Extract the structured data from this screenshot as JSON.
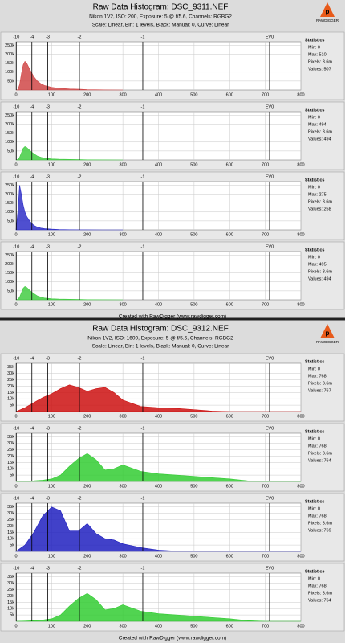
{
  "panels": [
    {
      "title": "Raw Data Histogram: DSC_9311.NEF",
      "subtitle": "Nikon 1V2, ISO: 200, Exposure: 5 @ f/5.6, Channels: RGBG2",
      "settings": "Scale: Linear, Bin: 1 levels, Black: Manual: 0, Curve: Linear",
      "logo": "RAWDIGGER",
      "footer": "Created with RawDigger (www.rawdigger.com)"
    },
    {
      "title": "Raw Data Histogram: DSC_9312.NEF",
      "subtitle": "Nikon 1V2, ISO: 1600, Exposure: 5 @ f/5.6, Channels: RGBG2",
      "settings": "Scale: Linear, Bin: 1 levels, Black: Manual: 0, Curve: Linear",
      "logo": "RAWDIGGER",
      "footer": "Created with RawDigger (www.rawdigger.com)"
    }
  ],
  "chart_data": [
    {
      "type": "area",
      "color": "#d04848",
      "x": [
        0,
        5,
        10,
        15,
        20,
        25,
        30,
        40,
        50,
        60,
        70,
        80,
        100,
        120,
        150,
        180,
        200,
        250,
        300
      ],
      "values": [
        0,
        2000,
        30000,
        90000,
        140000,
        160000,
        150000,
        110000,
        75000,
        50000,
        35000,
        25000,
        15000,
        10000,
        6000,
        4000,
        2000,
        500,
        0
      ],
      "xlim": [
        0,
        800
      ],
      "xticks": [
        0,
        100,
        200,
        300,
        400,
        500,
        600,
        700,
        800
      ],
      "ylim": [
        0,
        270000
      ],
      "yticks": [
        {
          "value": 50000,
          "label": "50k"
        },
        {
          "value": 100000,
          "label": "100k"
        },
        {
          "value": 150000,
          "label": "150k"
        },
        {
          "value": 200000,
          "label": "200k"
        },
        {
          "value": 250000,
          "label": "250k"
        }
      ],
      "ev_ticks": [
        {
          "value": 0.7,
          "label": "-10"
        },
        {
          "value": 44.5,
          "label": "-4"
        },
        {
          "value": 89,
          "label": "-3"
        },
        {
          "value": 178,
          "label": "-2"
        },
        {
          "value": 356,
          "label": "-1"
        },
        {
          "value": 712,
          "label": "EV0"
        }
      ],
      "grid": true,
      "stats": [
        "Statistics",
        "Min: 0",
        "Max: 510",
        "Pixels: 3.6m",
        "Values: 507"
      ]
    },
    {
      "type": "area",
      "color": "#44cc44",
      "x": [
        0,
        5,
        10,
        15,
        20,
        25,
        30,
        40,
        50,
        60,
        70,
        80,
        100,
        120,
        150,
        180,
        200,
        250,
        300
      ],
      "values": [
        0,
        3000,
        15000,
        40000,
        65000,
        75000,
        70000,
        50000,
        35000,
        22000,
        15000,
        10000,
        6000,
        4000,
        3000,
        2000,
        1000,
        300,
        0
      ],
      "xlim": [
        0,
        800
      ],
      "xticks": [
        0,
        100,
        200,
        300,
        400,
        500,
        600,
        700,
        800
      ],
      "ylim": [
        0,
        270000
      ],
      "yticks": [
        {
          "value": 50000,
          "label": "50k"
        },
        {
          "value": 100000,
          "label": "100k"
        },
        {
          "value": 150000,
          "label": "150k"
        },
        {
          "value": 200000,
          "label": "200k"
        },
        {
          "value": 250000,
          "label": "250k"
        }
      ],
      "ev_ticks": [
        {
          "value": 0.7,
          "label": "-10"
        },
        {
          "value": 44.5,
          "label": "-4"
        },
        {
          "value": 89,
          "label": "-3"
        },
        {
          "value": 178,
          "label": "-2"
        },
        {
          "value": 356,
          "label": "-1"
        },
        {
          "value": 712,
          "label": "EV0"
        }
      ],
      "grid": true,
      "stats": [
        "Statistics",
        "Min: 0",
        "Max: 494",
        "Pixels: 3.6m",
        "Values: 494"
      ]
    },
    {
      "type": "area",
      "color": "#3030c8",
      "x": [
        0,
        5,
        10,
        15,
        20,
        25,
        30,
        40,
        50,
        60,
        70,
        80,
        100,
        120,
        150,
        180,
        200,
        250,
        300
      ],
      "values": [
        0,
        100000,
        250000,
        200000,
        140000,
        100000,
        75000,
        45000,
        25000,
        15000,
        10000,
        7000,
        4000,
        2000,
        1000,
        500,
        200,
        0,
        0
      ],
      "xlim": [
        0,
        800
      ],
      "xticks": [
        0,
        100,
        200,
        300,
        400,
        500,
        600,
        700,
        800
      ],
      "ylim": [
        0,
        270000
      ],
      "yticks": [
        {
          "value": 50000,
          "label": "50k"
        },
        {
          "value": 100000,
          "label": "100k"
        },
        {
          "value": 150000,
          "label": "150k"
        },
        {
          "value": 200000,
          "label": "200k"
        },
        {
          "value": 250000,
          "label": "250k"
        }
      ],
      "ev_ticks": [
        {
          "value": 0.7,
          "label": "-10"
        },
        {
          "value": 44.5,
          "label": "-4"
        },
        {
          "value": 89,
          "label": "-3"
        },
        {
          "value": 178,
          "label": "-2"
        },
        {
          "value": 356,
          "label": "-1"
        },
        {
          "value": 712,
          "label": "EV0"
        }
      ],
      "grid": true,
      "stats": [
        "Statistics",
        "Min: 0",
        "Max: 275",
        "Pixels: 3.6m",
        "Values: 268"
      ]
    },
    {
      "type": "area",
      "color": "#44cc44",
      "x": [
        0,
        5,
        10,
        15,
        20,
        25,
        30,
        40,
        50,
        60,
        70,
        80,
        100,
        120,
        150,
        180,
        200,
        250,
        300
      ],
      "values": [
        0,
        3000,
        15000,
        40000,
        65000,
        75000,
        70000,
        50000,
        35000,
        22000,
        15000,
        10000,
        6000,
        4000,
        3000,
        2000,
        1000,
        300,
        0
      ],
      "xlim": [
        0,
        800
      ],
      "xticks": [
        0,
        100,
        200,
        300,
        400,
        500,
        600,
        700,
        800
      ],
      "ylim": [
        0,
        270000
      ],
      "yticks": [
        {
          "value": 50000,
          "label": "50k"
        },
        {
          "value": 100000,
          "label": "100k"
        },
        {
          "value": 150000,
          "label": "150k"
        },
        {
          "value": 200000,
          "label": "200k"
        },
        {
          "value": 250000,
          "label": "250k"
        }
      ],
      "ev_ticks": [
        {
          "value": 0.7,
          "label": "-10"
        },
        {
          "value": 44.5,
          "label": "-4"
        },
        {
          "value": 89,
          "label": "-3"
        },
        {
          "value": 178,
          "label": "-2"
        },
        {
          "value": 356,
          "label": "-1"
        },
        {
          "value": 712,
          "label": "EV0"
        }
      ],
      "grid": true,
      "stats": [
        "Statistics",
        "Min: 0",
        "Max: 495",
        "Pixels: 3.6m",
        "Values: 494"
      ]
    },
    {
      "type": "area",
      "color": "#cc1010",
      "x": [
        0,
        25,
        50,
        75,
        100,
        125,
        150,
        175,
        200,
        225,
        250,
        275,
        300,
        350,
        400,
        450,
        500,
        550,
        600,
        650,
        700,
        750,
        800
      ],
      "values": [
        0,
        3000,
        7000,
        11000,
        14000,
        18000,
        21000,
        19000,
        16000,
        18000,
        19000,
        15000,
        9000,
        4000,
        3000,
        2500,
        1500,
        400,
        0,
        0,
        0,
        0,
        0
      ],
      "xlim": [
        0,
        800
      ],
      "xticks": [
        0,
        100,
        200,
        300,
        400,
        500,
        600,
        700,
        800
      ],
      "ylim": [
        0,
        38000
      ],
      "yticks": [
        {
          "value": 5000,
          "label": "5k"
        },
        {
          "value": 10000,
          "label": "10k"
        },
        {
          "value": 15000,
          "label": "15k"
        },
        {
          "value": 20000,
          "label": "20k"
        },
        {
          "value": 25000,
          "label": "25k"
        },
        {
          "value": 30000,
          "label": "30k"
        },
        {
          "value": 35000,
          "label": "35k"
        }
      ],
      "ev_ticks": [
        {
          "value": 0.7,
          "label": "-10"
        },
        {
          "value": 44.5,
          "label": "-4"
        },
        {
          "value": 89,
          "label": "-3"
        },
        {
          "value": 178,
          "label": "-2"
        },
        {
          "value": 356,
          "label": "-1"
        },
        {
          "value": 712,
          "label": "EV0"
        }
      ],
      "grid": true,
      "stats": [
        "Statistics",
        "Min: 0",
        "Max: 768",
        "Pixels: 3.6m",
        "Values: 767"
      ]
    },
    {
      "type": "area",
      "color": "#33cc33",
      "x": [
        0,
        25,
        50,
        75,
        100,
        125,
        150,
        175,
        200,
        225,
        250,
        275,
        300,
        350,
        400,
        450,
        500,
        550,
        600,
        650,
        700,
        750,
        800
      ],
      "values": [
        0,
        200,
        500,
        1000,
        2000,
        5000,
        12000,
        18000,
        22000,
        17000,
        9000,
        10000,
        13000,
        8000,
        6000,
        5000,
        4000,
        3000,
        2000,
        500,
        0,
        0,
        0
      ],
      "xlim": [
        0,
        800
      ],
      "xticks": [
        0,
        100,
        200,
        300,
        400,
        500,
        600,
        700,
        800
      ],
      "ylim": [
        0,
        38000
      ],
      "yticks": [
        {
          "value": 5000,
          "label": "5k"
        },
        {
          "value": 10000,
          "label": "10k"
        },
        {
          "value": 15000,
          "label": "15k"
        },
        {
          "value": 20000,
          "label": "20k"
        },
        {
          "value": 25000,
          "label": "25k"
        },
        {
          "value": 30000,
          "label": "30k"
        },
        {
          "value": 35000,
          "label": "35k"
        }
      ],
      "ev_ticks": [
        {
          "value": 0.7,
          "label": "-10"
        },
        {
          "value": 44.5,
          "label": "-4"
        },
        {
          "value": 89,
          "label": "-3"
        },
        {
          "value": 178,
          "label": "-2"
        },
        {
          "value": 356,
          "label": "-1"
        },
        {
          "value": 712,
          "label": "EV0"
        }
      ],
      "grid": true,
      "stats": [
        "Statistics",
        "Min: 0",
        "Max: 768",
        "Pixels: 3.6m",
        "Values: 764"
      ]
    },
    {
      "type": "area",
      "color": "#2020c0",
      "x": [
        0,
        25,
        50,
        75,
        100,
        125,
        150,
        175,
        200,
        225,
        250,
        275,
        300,
        350,
        400,
        450,
        500,
        550,
        600,
        650,
        700,
        750,
        800
      ],
      "values": [
        0,
        5000,
        15000,
        28000,
        35000,
        32000,
        16000,
        16000,
        22000,
        14000,
        10000,
        9000,
        6000,
        3000,
        1000,
        200,
        0,
        0,
        0,
        0,
        0,
        0,
        0
      ],
      "xlim": [
        0,
        800
      ],
      "xticks": [
        0,
        100,
        200,
        300,
        400,
        500,
        600,
        700,
        800
      ],
      "ylim": [
        0,
        38000
      ],
      "yticks": [
        {
          "value": 5000,
          "label": "5k"
        },
        {
          "value": 10000,
          "label": "10k"
        },
        {
          "value": 15000,
          "label": "15k"
        },
        {
          "value": 20000,
          "label": "20k"
        },
        {
          "value": 25000,
          "label": "25k"
        },
        {
          "value": 30000,
          "label": "30k"
        },
        {
          "value": 35000,
          "label": "35k"
        }
      ],
      "ev_ticks": [
        {
          "value": 0.7,
          "label": "-10"
        },
        {
          "value": 44.5,
          "label": "-4"
        },
        {
          "value": 89,
          "label": "-3"
        },
        {
          "value": 178,
          "label": "-2"
        },
        {
          "value": 356,
          "label": "-1"
        },
        {
          "value": 712,
          "label": "EV0"
        }
      ],
      "grid": true,
      "stats": [
        "Statistics",
        "Min: 0",
        "Max: 768",
        "Pixels: 3.6m",
        "Values: 769"
      ]
    },
    {
      "type": "area",
      "color": "#33cc33",
      "x": [
        0,
        25,
        50,
        75,
        100,
        125,
        150,
        175,
        200,
        225,
        250,
        275,
        300,
        350,
        400,
        450,
        500,
        550,
        600,
        650,
        700,
        750,
        800
      ],
      "values": [
        0,
        200,
        500,
        1000,
        2000,
        5000,
        12000,
        18000,
        22000,
        17000,
        9000,
        10000,
        13000,
        8000,
        6000,
        5000,
        4000,
        3000,
        2000,
        500,
        0,
        0,
        0
      ],
      "xlim": [
        0,
        800
      ],
      "xticks": [
        0,
        100,
        200,
        300,
        400,
        500,
        600,
        700,
        800
      ],
      "ylim": [
        0,
        38000
      ],
      "yticks": [
        {
          "value": 5000,
          "label": "5k"
        },
        {
          "value": 10000,
          "label": "10k"
        },
        {
          "value": 15000,
          "label": "15k"
        },
        {
          "value": 20000,
          "label": "20k"
        },
        {
          "value": 25000,
          "label": "25k"
        },
        {
          "value": 30000,
          "label": "30k"
        },
        {
          "value": 35000,
          "label": "35k"
        }
      ],
      "ev_ticks": [
        {
          "value": 0.7,
          "label": "-10"
        },
        {
          "value": 44.5,
          "label": "-4"
        },
        {
          "value": 89,
          "label": "-3"
        },
        {
          "value": 178,
          "label": "-2"
        },
        {
          "value": 356,
          "label": "-1"
        },
        {
          "value": 712,
          "label": "EV0"
        }
      ],
      "grid": true,
      "stats": [
        "Statistics",
        "Min: 0",
        "Max: 768",
        "Pixels: 3.6m",
        "Values: 764"
      ]
    }
  ]
}
